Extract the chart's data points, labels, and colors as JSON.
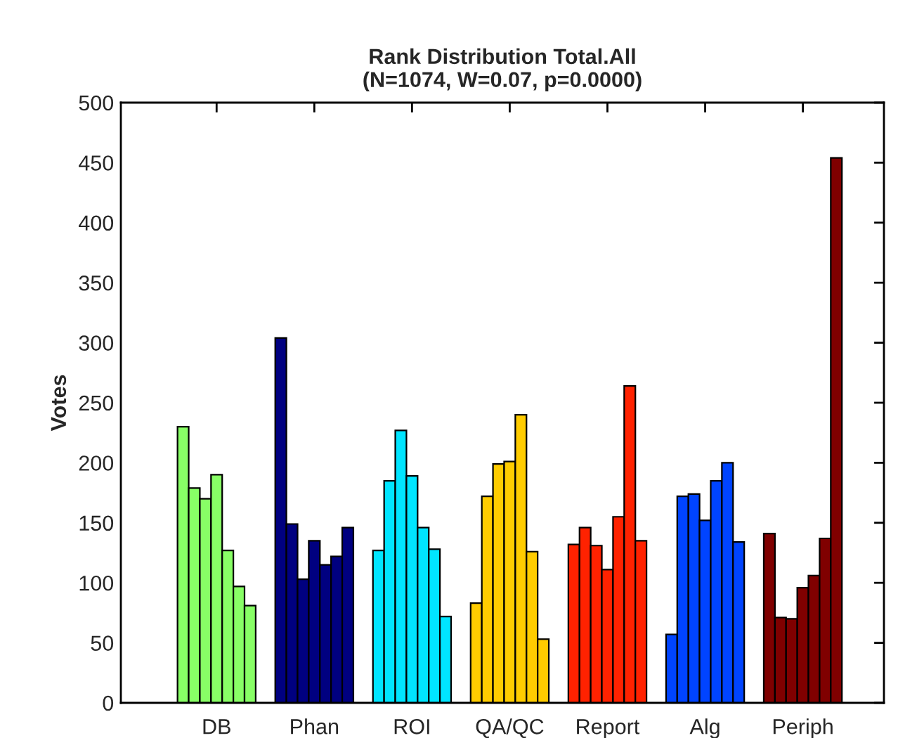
{
  "chart_data": {
    "type": "bar",
    "title": "Rank Distribution Total.All\n(N=1074, W=0.07, p=0.0000)",
    "ylabel": "Votes",
    "categories": [
      "DB",
      "Phan",
      "ROI",
      "QA/QC",
      "Report",
      "Alg",
      "Periph"
    ],
    "series": [
      {
        "colors": [
          "#88ff66",
          "#000080",
          "#00e5ff",
          "#ffcc00",
          "#ff2200",
          "#0044ff",
          "#800000"
        ],
        "values": [
          230,
          304,
          127,
          83,
          132,
          57,
          141
        ]
      },
      {
        "colors": [
          "#88ff66",
          "#000080",
          "#00e5ff",
          "#ffcc00",
          "#ff2200",
          "#0044ff",
          "#800000"
        ],
        "values": [
          179,
          149,
          185,
          172,
          146,
          172,
          71
        ]
      },
      {
        "colors": [
          "#88ff66",
          "#000080",
          "#00e5ff",
          "#ffcc00",
          "#ff2200",
          "#0044ff",
          "#800000"
        ],
        "values": [
          170,
          103,
          227,
          199,
          131,
          174,
          70
        ]
      },
      {
        "colors": [
          "#88ff66",
          "#000080",
          "#00e5ff",
          "#ffcc00",
          "#ff2200",
          "#0044ff",
          "#800000"
        ],
        "values": [
          190,
          135,
          189,
          201,
          111,
          152,
          96
        ]
      },
      {
        "colors": [
          "#88ff66",
          "#000080",
          "#00e5ff",
          "#ffcc00",
          "#ff2200",
          "#0044ff",
          "#800000"
        ],
        "values": [
          127,
          115,
          146,
          240,
          155,
          185,
          106
        ]
      },
      {
        "colors": [
          "#88ff66",
          "#000080",
          "#00e5ff",
          "#ffcc00",
          "#ff2200",
          "#0044ff",
          "#800000"
        ],
        "values": [
          97,
          122,
          128,
          126,
          264,
          200,
          137
        ]
      },
      {
        "colors": [
          "#88ff66",
          "#000080",
          "#00e5ff",
          "#ffcc00",
          "#ff2200",
          "#0044ff",
          "#800000"
        ],
        "values": [
          81,
          146,
          72,
          53,
          135,
          134,
          454
        ]
      }
    ],
    "ylim": [
      0,
      500
    ],
    "yticks": [
      0,
      50,
      100,
      150,
      200,
      250,
      300,
      350,
      400,
      450,
      500
    ],
    "grid": false,
    "legend": false
  }
}
